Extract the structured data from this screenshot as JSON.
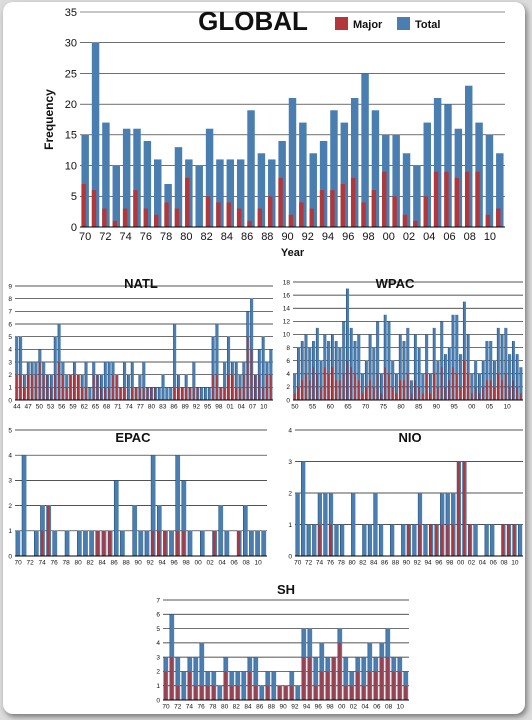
{
  "colors": {
    "major": "#b2363a",
    "total": "#4a7eb0",
    "grid": "#1a1a1a"
  },
  "chart_data": [
    {
      "id": "global",
      "type": "bar",
      "title": "GLOBAL",
      "xlabel": "Year",
      "ylabel": "Frequency",
      "ylim": [
        0,
        35
      ],
      "yticks": [
        0,
        5,
        10,
        15,
        20,
        25,
        30,
        35
      ],
      "legend": [
        "Major",
        "Total"
      ],
      "legend_position": "top-right",
      "grid": true,
      "xtick_labels": [
        "70",
        "72",
        "74",
        "76",
        "78",
        "80",
        "82",
        "84",
        "86",
        "88",
        "90",
        "92",
        "94",
        "96",
        "98",
        "00",
        "02",
        "04",
        "06",
        "08",
        "10"
      ],
      "categories": [
        "1970",
        "1971",
        "1972",
        "1973",
        "1974",
        "1975",
        "1976",
        "1977",
        "1978",
        "1979",
        "1980",
        "1981",
        "1982",
        "1983",
        "1984",
        "1985",
        "1986",
        "1987",
        "1988",
        "1989",
        "1990",
        "1991",
        "1992",
        "1993",
        "1994",
        "1995",
        "1996",
        "1997",
        "1998",
        "1999",
        "2000",
        "2001",
        "2002",
        "2003",
        "2004",
        "2005",
        "2006",
        "2007",
        "2008",
        "2009",
        "2010"
      ],
      "series": [
        {
          "name": "Total",
          "values": [
            15,
            30,
            17,
            10,
            16,
            16,
            14,
            11,
            7,
            13,
            11,
            10,
            16,
            11,
            11,
            11,
            19,
            12,
            11,
            14,
            21,
            17,
            12,
            14,
            19,
            17,
            21,
            25,
            19,
            15,
            15,
            12,
            10,
            17,
            21,
            20,
            16,
            23,
            17,
            15,
            12
          ]
        },
        {
          "name": "Major",
          "values": [
            7,
            6,
            3,
            1,
            3,
            6,
            3,
            2,
            4,
            3,
            8,
            0,
            5,
            4,
            4,
            3,
            1,
            3,
            5,
            8,
            2,
            4,
            3,
            6,
            6,
            7,
            8,
            4,
            6,
            9,
            5,
            2,
            1,
            5,
            9,
            9,
            8,
            9,
            9,
            2,
            3
          ]
        }
      ]
    },
    {
      "id": "natl",
      "type": "bar",
      "title": "NATL",
      "ylim": [
        0,
        9
      ],
      "yticks": [
        0,
        1,
        2,
        3,
        4,
        5,
        6,
        7,
        8,
        9
      ],
      "grid": true,
      "xtick_labels": [
        "44",
        "47",
        "50",
        "53",
        "56",
        "59",
        "62",
        "65",
        "68",
        "71",
        "74",
        "77",
        "80",
        "83",
        "86",
        "89",
        "92",
        "95",
        "98",
        "01",
        "04",
        "07",
        "10"
      ],
      "categories": [
        "1944",
        "1945",
        "1946",
        "1947",
        "1948",
        "1949",
        "1950",
        "1951",
        "1952",
        "1953",
        "1954",
        "1955",
        "1956",
        "1957",
        "1958",
        "1959",
        "1960",
        "1961",
        "1962",
        "1963",
        "1964",
        "1965",
        "1966",
        "1967",
        "1968",
        "1969",
        "1970",
        "1971",
        "1972",
        "1973",
        "1974",
        "1975",
        "1976",
        "1977",
        "1978",
        "1979",
        "1980",
        "1981",
        "1982",
        "1983",
        "1984",
        "1985",
        "1986",
        "1987",
        "1988",
        "1989",
        "1990",
        "1991",
        "1992",
        "1993",
        "1994",
        "1995",
        "1996",
        "1997",
        "1998",
        "1999",
        "2000",
        "2001",
        "2002",
        "2003",
        "2004",
        "2005",
        "2006",
        "2007",
        "2008",
        "2009",
        "2010"
      ],
      "series": [
        {
          "name": "Total",
          "values": [
            5,
            5,
            2,
            3,
            3,
            3,
            4,
            3,
            2,
            2,
            5,
            6,
            3,
            2,
            2,
            3,
            2,
            2,
            3,
            1,
            3,
            2,
            2,
            3,
            3,
            3,
            2,
            1,
            3,
            2,
            3,
            1,
            2,
            3,
            1,
            1,
            1,
            1,
            2,
            1,
            1,
            6,
            2,
            1,
            2,
            1,
            3,
            1,
            1,
            1,
            1,
            5,
            6,
            1,
            3,
            5,
            3,
            3,
            2,
            3,
            7,
            8,
            2,
            4,
            5,
            3,
            4
          ]
        },
        {
          "name": "Major",
          "values": [
            2,
            2,
            1,
            2,
            2,
            2,
            3,
            2,
            2,
            1,
            2,
            3,
            2,
            1,
            2,
            2,
            2,
            1,
            1,
            0,
            2,
            2,
            1,
            1,
            1,
            2,
            2,
            1,
            1,
            0,
            1,
            1,
            1,
            1,
            1,
            1,
            1,
            0,
            0,
            0,
            0,
            1,
            1,
            1,
            1,
            1,
            1,
            1,
            0,
            0,
            0,
            2,
            2,
            1,
            1,
            2,
            2,
            1,
            1,
            2,
            5,
            4,
            2,
            2,
            1,
            2,
            2
          ]
        }
      ]
    },
    {
      "id": "wpac",
      "type": "bar",
      "title": "WPAC",
      "ylim": [
        0,
        18
      ],
      "yticks": [
        0,
        2,
        4,
        6,
        8,
        10,
        12,
        14,
        16,
        18
      ],
      "grid": true,
      "xtick_labels": [
        "50",
        "55",
        "60",
        "65",
        "70",
        "75",
        "80",
        "85",
        "90",
        "95",
        "00",
        "05",
        "10"
      ],
      "categories": [
        "1950",
        "1951",
        "1952",
        "1953",
        "1954",
        "1955",
        "1956",
        "1957",
        "1958",
        "1959",
        "1960",
        "1961",
        "1962",
        "1963",
        "1964",
        "1965",
        "1966",
        "1967",
        "1968",
        "1969",
        "1970",
        "1971",
        "1972",
        "1973",
        "1974",
        "1975",
        "1976",
        "1977",
        "1978",
        "1979",
        "1980",
        "1981",
        "1982",
        "1983",
        "1984",
        "1985",
        "1986",
        "1987",
        "1988",
        "1989",
        "1990",
        "1991",
        "1992",
        "1993",
        "1994",
        "1995",
        "1996",
        "1997",
        "1998",
        "1999",
        "2000",
        "2001",
        "2002",
        "2003",
        "2004",
        "2005",
        "2006",
        "2007",
        "2008",
        "2009",
        "2010"
      ],
      "series": [
        {
          "name": "Total",
          "values": [
            4,
            8,
            9,
            10,
            8,
            9,
            11,
            6,
            10,
            9,
            10,
            9,
            8,
            12,
            17,
            11,
            9,
            10,
            4,
            6,
            10,
            8,
            12,
            4,
            13,
            12,
            6,
            4,
            10,
            9,
            11,
            3,
            10,
            8,
            4,
            10,
            4,
            11,
            6,
            12,
            7,
            8,
            13,
            13,
            7,
            15,
            10,
            4,
            6,
            4,
            6,
            9,
            9,
            6,
            11,
            10,
            11,
            7,
            9,
            7,
            5
          ]
        },
        {
          "name": "Major",
          "values": [
            1,
            2,
            3,
            4,
            3,
            5,
            4,
            2,
            5,
            4,
            5,
            3,
            3,
            4,
            6,
            5,
            4,
            3,
            1,
            2,
            3,
            2,
            4,
            1,
            5,
            4,
            2,
            1,
            3,
            3,
            4,
            1,
            3,
            2,
            1,
            4,
            1,
            4,
            2,
            5,
            2,
            3,
            5,
            4,
            2,
            6,
            4,
            1,
            2,
            1,
            2,
            3,
            3,
            2,
            4,
            3,
            4,
            2,
            3,
            2,
            1
          ]
        }
      ]
    },
    {
      "id": "epac",
      "type": "bar",
      "title": "EPAC",
      "ylim": [
        0,
        5
      ],
      "yticks": [
        0,
        1,
        2,
        3,
        4,
        5
      ],
      "grid": true,
      "xtick_labels": [
        "70",
        "72",
        "74",
        "76",
        "78",
        "80",
        "82",
        "84",
        "86",
        "88",
        "90",
        "92",
        "94",
        "96",
        "98",
        "00",
        "02",
        "04",
        "06",
        "08",
        "10"
      ],
      "categories": [
        "1970",
        "1971",
        "1972",
        "1973",
        "1974",
        "1975",
        "1976",
        "1977",
        "1978",
        "1979",
        "1980",
        "1981",
        "1982",
        "1983",
        "1984",
        "1985",
        "1986",
        "1987",
        "1988",
        "1989",
        "1990",
        "1991",
        "1992",
        "1993",
        "1994",
        "1995",
        "1996",
        "1997",
        "1998",
        "1999",
        "2000",
        "2001",
        "2002",
        "2003",
        "2004",
        "2005",
        "2006",
        "2007",
        "2008",
        "2009",
        "2010"
      ],
      "series": [
        {
          "name": "Total",
          "values": [
            1,
            4,
            0,
            1,
            2,
            2,
            1,
            0,
            1,
            0,
            1,
            1,
            1,
            1,
            1,
            1,
            3,
            1,
            0,
            2,
            1,
            1,
            4,
            2,
            1,
            1,
            4,
            3,
            1,
            0,
            1,
            0,
            1,
            2,
            1,
            0,
            1,
            2,
            1,
            1,
            1
          ]
        },
        {
          "name": "Major",
          "values": [
            0,
            0,
            0,
            0,
            1,
            2,
            0,
            0,
            0,
            0,
            0,
            0,
            0,
            1,
            1,
            1,
            0,
            0,
            0,
            0,
            0,
            0,
            1,
            1,
            1,
            0,
            1,
            1,
            0,
            0,
            0,
            0,
            1,
            0,
            0,
            0,
            1,
            0,
            0,
            0,
            0
          ]
        }
      ]
    },
    {
      "id": "nio",
      "type": "bar",
      "title": "NIO",
      "ylim": [
        0,
        4
      ],
      "yticks": [
        0,
        1,
        2,
        3,
        4
      ],
      "grid": true,
      "xtick_labels": [
        "70",
        "72",
        "74",
        "76",
        "78",
        "80",
        "82",
        "84",
        "86",
        "88",
        "90",
        "92",
        "94",
        "96",
        "98",
        "00",
        "02",
        "04",
        "06",
        "08",
        "10"
      ],
      "categories": [
        "1970",
        "1971",
        "1972",
        "1973",
        "1974",
        "1975",
        "1976",
        "1977",
        "1978",
        "1979",
        "1980",
        "1981",
        "1982",
        "1983",
        "1984",
        "1985",
        "1986",
        "1987",
        "1988",
        "1989",
        "1990",
        "1991",
        "1992",
        "1993",
        "1994",
        "1995",
        "1996",
        "1997",
        "1998",
        "1999",
        "2000",
        "2001",
        "2002",
        "2003",
        "2004",
        "2005",
        "2006",
        "2007",
        "2008",
        "2009",
        "2010"
      ],
      "series": [
        {
          "name": "Total",
          "values": [
            2,
            3,
            1,
            1,
            2,
            2,
            2,
            1,
            1,
            0,
            2,
            0,
            1,
            1,
            2,
            1,
            0,
            1,
            0,
            1,
            1,
            1,
            2,
            1,
            1,
            1,
            2,
            2,
            2,
            3,
            3,
            1,
            1,
            0,
            1,
            1,
            0,
            1,
            1,
            1,
            1
          ]
        },
        {
          "name": "Major",
          "values": [
            0,
            0,
            0,
            0,
            1,
            0,
            1,
            0,
            0,
            0,
            0,
            0,
            0,
            0,
            0,
            0,
            0,
            0,
            0,
            0,
            1,
            0,
            1,
            0,
            1,
            1,
            1,
            1,
            1,
            3,
            3,
            1,
            0,
            0,
            0,
            0,
            0,
            1,
            1,
            1,
            0
          ]
        }
      ]
    },
    {
      "id": "sh",
      "type": "bar",
      "title": "SH",
      "ylim": [
        0,
        7
      ],
      "yticks": [
        0,
        1,
        2,
        3,
        4,
        5,
        6,
        7
      ],
      "grid": true,
      "xtick_labels": [
        "70",
        "72",
        "74",
        "76",
        "78",
        "80",
        "82",
        "84",
        "86",
        "88",
        "90",
        "92",
        "94",
        "96",
        "98",
        "00",
        "02",
        "04",
        "06",
        "08",
        "10"
      ],
      "categories": [
        "1970",
        "1971",
        "1972",
        "1973",
        "1974",
        "1975",
        "1976",
        "1977",
        "1978",
        "1979",
        "1980",
        "1981",
        "1982",
        "1983",
        "1984",
        "1985",
        "1986",
        "1987",
        "1988",
        "1989",
        "1990",
        "1991",
        "1992",
        "1993",
        "1994",
        "1995",
        "1996",
        "1997",
        "1998",
        "1999",
        "2000",
        "2001",
        "2002",
        "2003",
        "2004",
        "2005",
        "2006",
        "2007",
        "2008",
        "2009",
        "2010"
      ],
      "series": [
        {
          "name": "Total",
          "values": [
            3,
            6,
            3,
            2,
            3,
            3,
            4,
            2,
            2,
            1,
            3,
            2,
            2,
            2,
            3,
            3,
            1,
            2,
            2,
            1,
            1,
            2,
            1,
            5,
            5,
            3,
            4,
            3,
            3,
            5,
            3,
            2,
            3,
            3,
            4,
            3,
            4,
            5,
            3,
            3,
            2
          ]
        },
        {
          "name": "Major",
          "values": [
            2,
            3,
            1,
            0,
            2,
            1,
            1,
            1,
            1,
            0,
            2,
            1,
            1,
            0,
            2,
            1,
            0,
            1,
            0,
            1,
            1,
            1,
            0,
            3,
            3,
            1,
            2,
            2,
            3,
            4,
            1,
            1,
            2,
            1,
            2,
            2,
            3,
            3,
            2,
            2,
            1
          ]
        }
      ]
    }
  ]
}
